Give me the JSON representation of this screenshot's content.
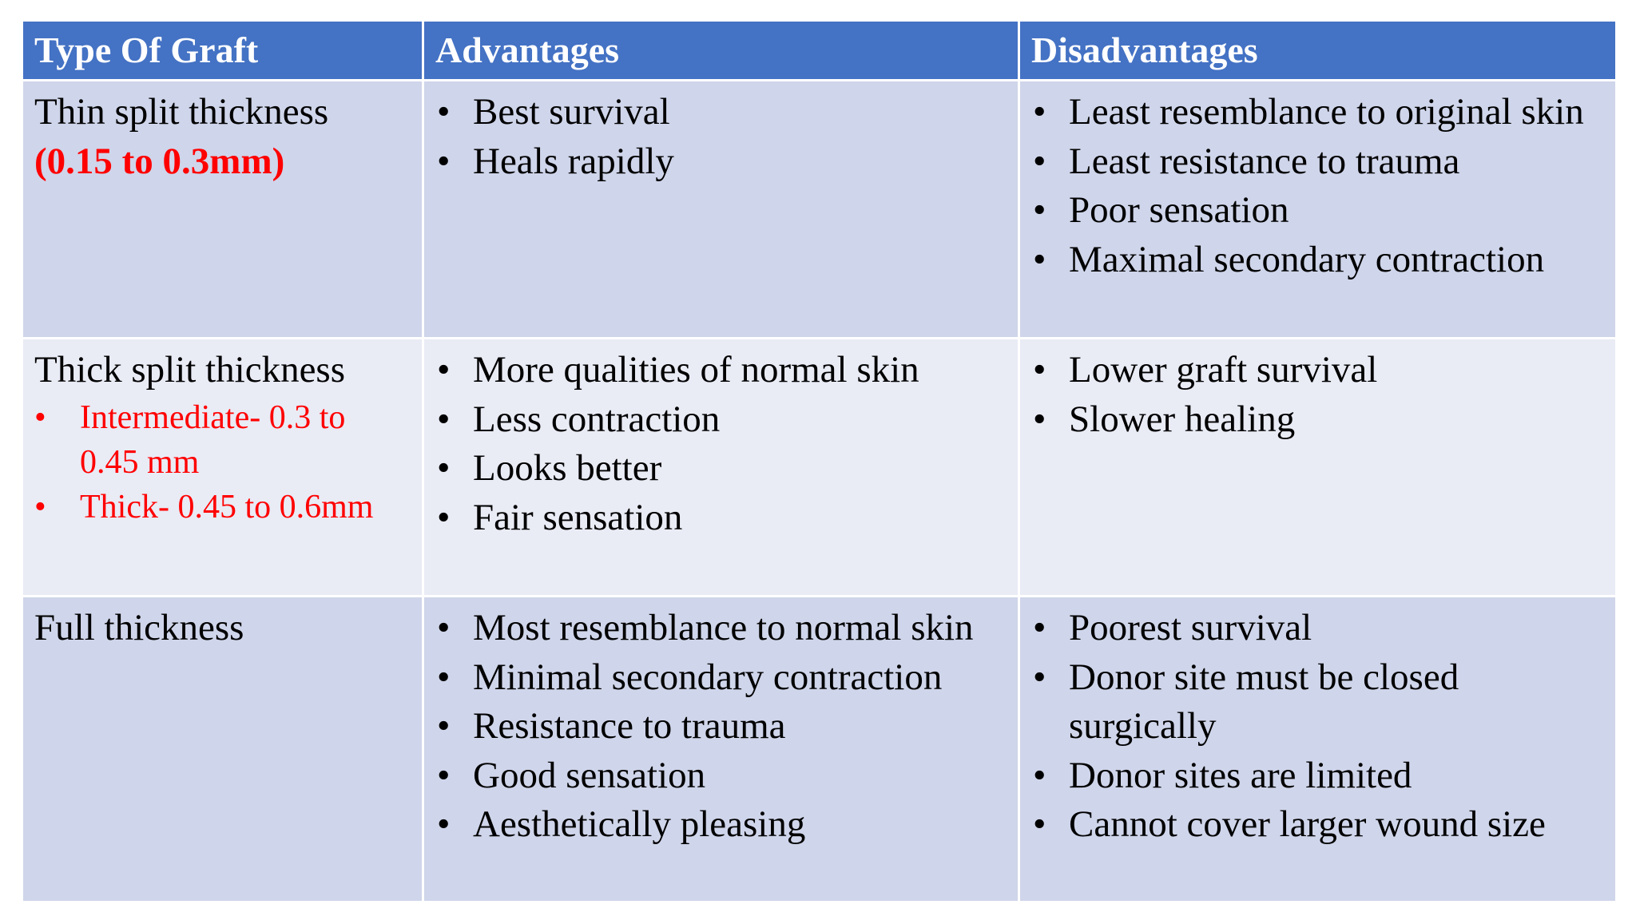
{
  "table": {
    "headers": [
      "Type Of Graft",
      "Advantages",
      "Disadvantages"
    ],
    "rows": [
      {
        "type": "Thin split thickness",
        "type_range": "(0.15 to 0.3mm)",
        "advantages": [
          "Best survival",
          "Heals rapidly"
        ],
        "disadvantages": [
          "Least resemblance to original skin",
          "Least resistance to trauma",
          "Poor sensation",
          "Maximal secondary contraction"
        ]
      },
      {
        "type": "Thick split thickness",
        "type_subitems": [
          "Intermediate- 0.3 to 0.45 mm",
          "Thick- 0.45 to 0.6mm"
        ],
        "advantages": [
          "More qualities of normal skin",
          "Less contraction",
          "Looks better",
          "Fair sensation"
        ],
        "disadvantages": [
          "Lower graft survival",
          "Slower healing"
        ]
      },
      {
        "type": "Full thickness",
        "advantages": [
          "Most resemblance to normal skin",
          "Minimal secondary contraction",
          "Resistance to trauma",
          "Good sensation",
          "Aesthetically pleasing"
        ],
        "disadvantages": [
          "Poorest survival",
          "Donor site must be closed surgically",
          "Donor sites are limited",
          "Cannot cover larger wound size"
        ]
      }
    ]
  },
  "colors": {
    "header_bg": "#4472c4",
    "row_dark_bg": "#cfd5ea",
    "row_light_bg": "#e9ebf5",
    "highlight_text": "#ff0000"
  }
}
